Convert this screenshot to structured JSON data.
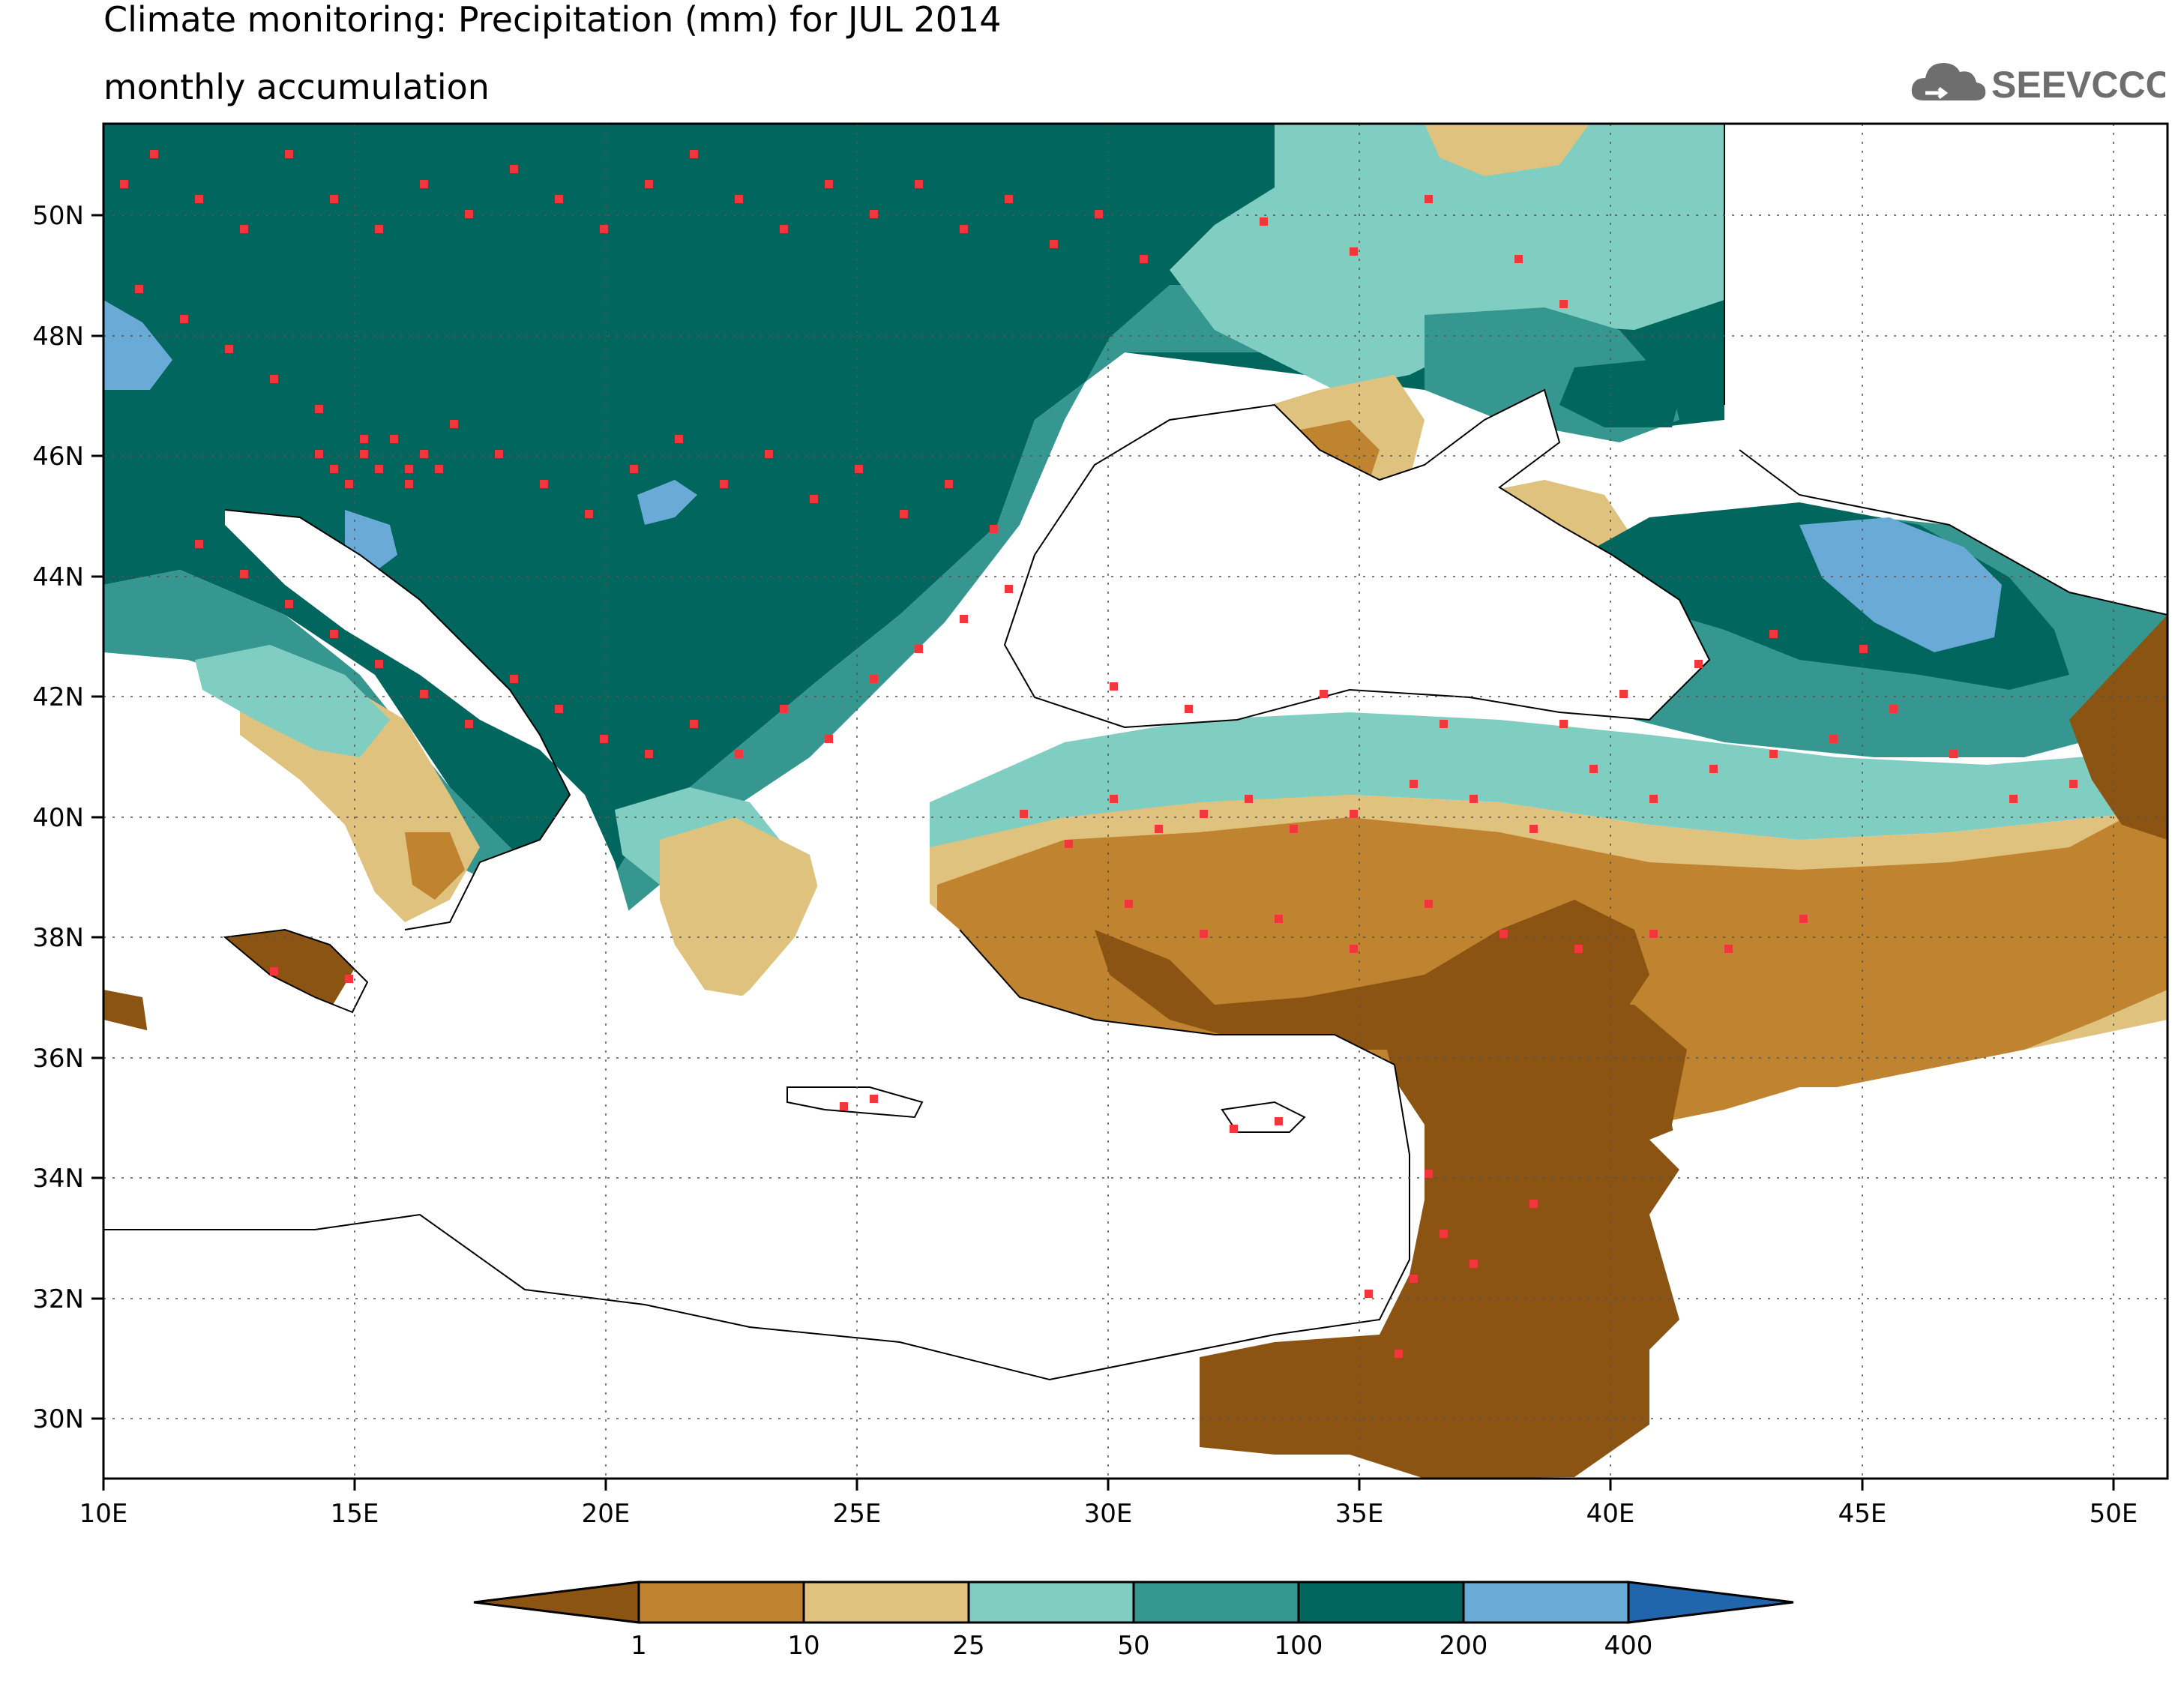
{
  "title": {
    "line1": "Climate monitoring: Precipitation (mm) for JUL 2014",
    "line2": "monthly accumulation"
  },
  "logo": {
    "text": "SEEVCCC",
    "icon": "cloud-icon"
  },
  "map": {
    "lon_range": [
      10,
      51
    ],
    "lat_range": [
      29,
      51.5
    ],
    "lon_ticks": [
      "10E",
      "15E",
      "20E",
      "25E",
      "30E",
      "35E",
      "40E",
      "45E",
      "50E"
    ],
    "lat_ticks": [
      "30N",
      "32N",
      "34N",
      "36N",
      "38N",
      "40N",
      "42N",
      "44N",
      "46N",
      "48N",
      "50N"
    ],
    "gridlines": true,
    "station_color": "#f0383c"
  },
  "legend": {
    "thresholds": [
      "1",
      "10",
      "25",
      "50",
      "100",
      "200",
      "400"
    ],
    "colors": [
      "#8b5412",
      "#c0832f",
      "#dfc27d",
      "#80cdc1",
      "#35978f",
      "#01665e",
      "#6aaad6",
      "#2166ac"
    ]
  }
}
